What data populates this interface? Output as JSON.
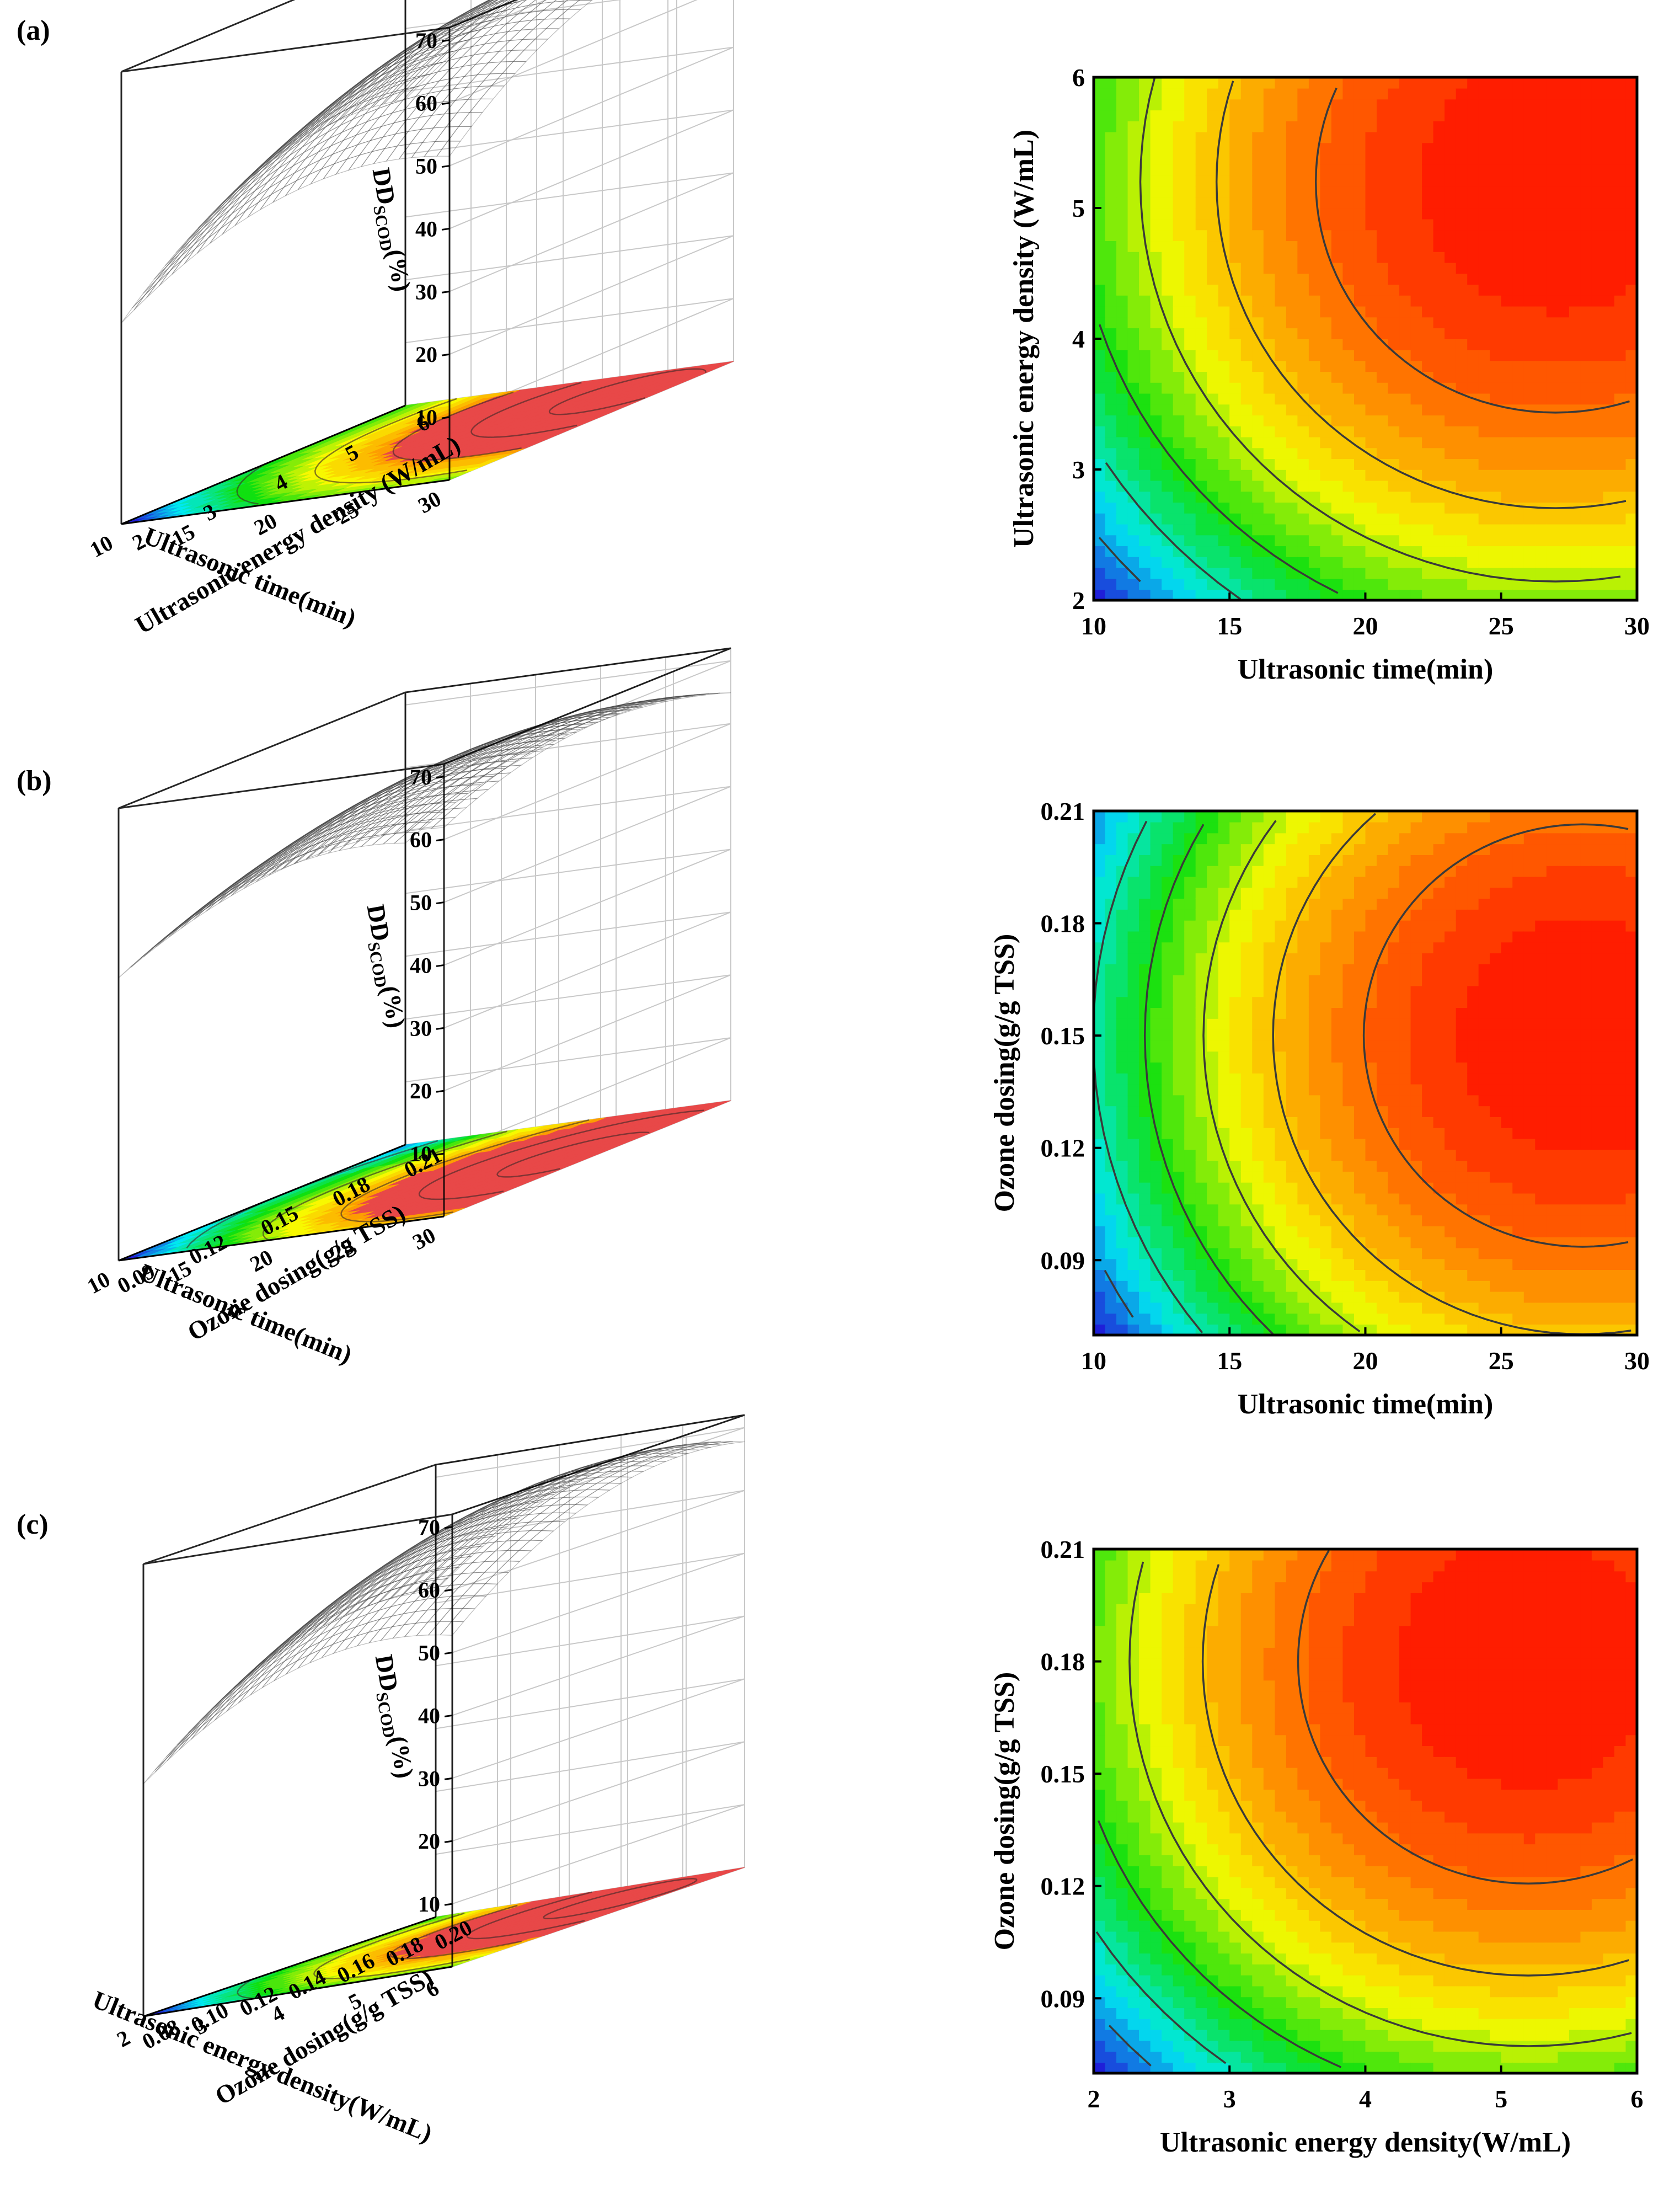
{
  "figure": {
    "panels": [
      {
        "label": "(a)"
      },
      {
        "label": "(b)"
      },
      {
        "label": "(c)"
      }
    ]
  },
  "colors": {
    "low": "#1f1fd8",
    "mid_low": "#00e8f0",
    "mid": "#10e010",
    "mid_high": "#f8f800",
    "high": "#ff8000",
    "top": "#ff0000"
  },
  "chart_data": [
    {
      "panel": "(a)",
      "type": "surface3d",
      "title": "",
      "xlabel": "Ultrasonic time(min)",
      "ylabel": "Ultrasonic energy density (W/mL)",
      "zlabel_main": "DD",
      "zlabel_sub": "SCOD",
      "zlabel_unit": "(%)",
      "xticks": [
        "10",
        "15",
        "20",
        "25",
        "30"
      ],
      "yticks": [
        "2",
        "3",
        "4",
        "5",
        "6"
      ],
      "zticks": [
        "10",
        "20",
        "30",
        "40",
        "50",
        "60",
        "70"
      ],
      "xlim": [
        10,
        30
      ],
      "ylim": [
        2,
        6
      ],
      "zlim": [
        0,
        72
      ],
      "peak": {
        "x": 27,
        "y": 5.2,
        "z": 70
      },
      "corner_min": {
        "x": 10,
        "y": 2,
        "z": 32
      }
    },
    {
      "panel": "(a)",
      "type": "contour",
      "xlabel": "Ultrasonic time(min)",
      "ylabel": "Ultrasonic energy density (W/mL)",
      "xticks": [
        "10",
        "15",
        "20",
        "25",
        "30"
      ],
      "yticks": [
        "2",
        "3",
        "4",
        "5",
        "6"
      ],
      "xlim": [
        10,
        30
      ],
      "ylim": [
        2,
        6
      ],
      "peak": {
        "x": 27,
        "y": 5.2,
        "z": 70
      },
      "zrange": [
        32,
        70
      ]
    },
    {
      "panel": "(b)",
      "type": "surface3d",
      "xlabel": "Ultrasonic time(min)",
      "ylabel": "Ozone dosing(g/g TSS)",
      "zlabel_main": "DD",
      "zlabel_sub": "SCOD",
      "zlabel_unit": "(%)",
      "xticks": [
        "10",
        "15",
        "20",
        "25",
        "30"
      ],
      "yticks": [
        "0.09",
        "0.12",
        "0.15",
        "0.18",
        "0.21"
      ],
      "zticks": [
        "10",
        "20",
        "30",
        "40",
        "50",
        "60",
        "70"
      ],
      "xlim": [
        10,
        30
      ],
      "ylim": [
        0.07,
        0.21
      ],
      "zlim": [
        0,
        72
      ],
      "peak": {
        "x": 28,
        "y": 0.15,
        "z": 69
      },
      "corner_min": {
        "x": 10,
        "y": 0.07,
        "z": 45
      }
    },
    {
      "panel": "(b)",
      "type": "contour",
      "xlabel": "Ultrasonic time(min)",
      "ylabel": "Ozone dosing(g/g TSS)",
      "xticks": [
        "10",
        "15",
        "20",
        "25",
        "30"
      ],
      "yticks": [
        "0.09",
        "0.12",
        "0.15",
        "0.18",
        "0.21"
      ],
      "xlim": [
        10,
        30
      ],
      "ylim": [
        0.07,
        0.21
      ],
      "peak": {
        "x": 28,
        "y": 0.15,
        "z": 69
      },
      "zrange": [
        45,
        69
      ]
    },
    {
      "panel": "(c)",
      "type": "surface3d",
      "xlabel": "Ultrasonic energy density(W/mL)",
      "ylabel": "Ozone dosing(g/g TSS)",
      "zlabel_main": "DD",
      "zlabel_sub": "SCOD",
      "zlabel_unit": "(%)",
      "xticks": [
        "2",
        "3",
        "4",
        "5",
        "6"
      ],
      "yticks": [
        "0.08",
        "0.10",
        "0.12",
        "0.14",
        "0.16",
        "0.18",
        "0.20"
      ],
      "zticks": [
        "10",
        "20",
        "30",
        "40",
        "50",
        "60",
        "70"
      ],
      "xlim": [
        2,
        6
      ],
      "ylim": [
        0.07,
        0.21
      ],
      "zlim": [
        0,
        72
      ],
      "peak": {
        "x": 5.2,
        "y": 0.18,
        "z": 70
      },
      "corner_min": {
        "x": 2,
        "y": 0.07,
        "z": 37
      }
    },
    {
      "panel": "(c)",
      "type": "contour",
      "xlabel": "Ultrasonic energy density(W/mL)",
      "ylabel": "Ozone dosing(g/g TSS)",
      "xticks": [
        "2",
        "3",
        "4",
        "5",
        "6"
      ],
      "yticks": [
        "0.09",
        "0.12",
        "0.15",
        "0.18",
        "0.21"
      ],
      "xlim": [
        2,
        6
      ],
      "ylim": [
        0.07,
        0.21
      ],
      "peak": {
        "x": 5.2,
        "y": 0.18,
        "z": 70
      },
      "zrange": [
        37,
        70
      ]
    }
  ]
}
